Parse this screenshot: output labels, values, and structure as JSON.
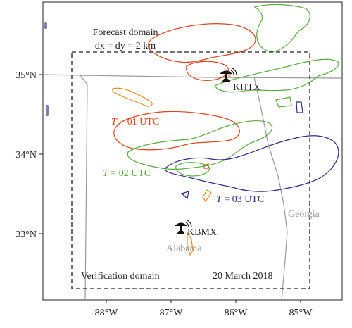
{
  "map": {
    "y_axis_labels": [
      "35°N",
      "34°N",
      "33°N"
    ],
    "x_axis_labels": [
      "88°W",
      "87°W",
      "86°W",
      "85°W"
    ],
    "forecast_domain": {
      "title": "Forecast domain",
      "resolution": "dx = dy = 2 km"
    },
    "verification_domain_label": "Verification domain",
    "date_label": "20 March 2018",
    "radars": [
      {
        "id": "KHTX"
      },
      {
        "id": "KBMX"
      }
    ],
    "states": [
      "Alabama",
      "Georgia"
    ],
    "contours": [
      {
        "label_prefix": "T",
        "label_suffix": " = 01 UTC",
        "color": "#e0431b"
      },
      {
        "label_prefix": "T",
        "label_suffix": " = 02 UTC",
        "color": "#5aac3c"
      },
      {
        "label_prefix": "T",
        "label_suffix": " = 03 UTC",
        "color": "#2e2a8c"
      }
    ],
    "colors": {
      "state_border": "#9a9a9a",
      "extra_contour": "#f08a24",
      "frame": "#222222"
    }
  }
}
